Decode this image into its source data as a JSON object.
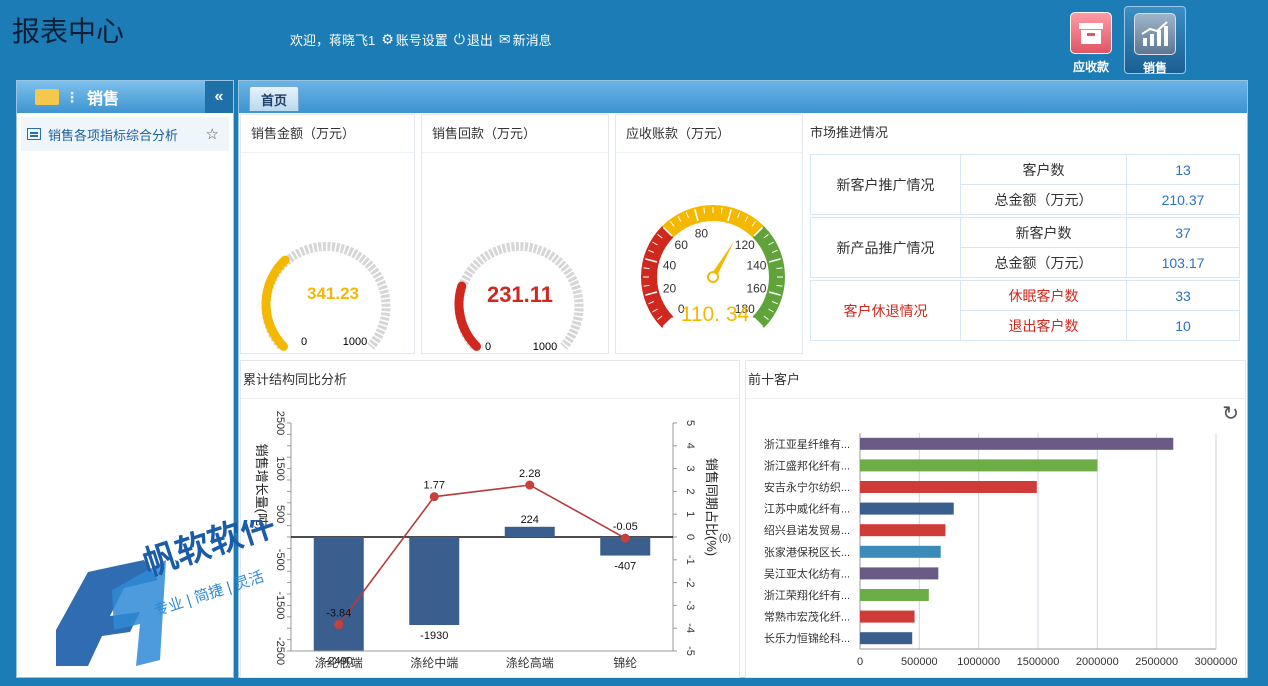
{
  "header": {
    "title": "报表中心",
    "welcome": "欢迎，蒋晓飞1",
    "account_settings": "账号设置",
    "logout": "退出",
    "new_message": "新消息"
  },
  "top_apps": [
    {
      "label": "应收款"
    },
    {
      "label": "销售"
    }
  ],
  "sidebar": {
    "title": "销售",
    "items": [
      {
        "label": "销售各项指标综合分析"
      }
    ]
  },
  "tabs": [
    {
      "label": "首页"
    }
  ],
  "gauges": [
    {
      "title": "销售金额（万元）",
      "value": "341.23",
      "min": "0",
      "max": "1000",
      "fraction": 0.341,
      "color": "#f5b800"
    },
    {
      "title": "销售回款（万元）",
      "value": "231.11",
      "min": "0",
      "max": "1000",
      "fraction": 0.231,
      "color": "#d0281e"
    },
    {
      "title": "应收账款（万元）",
      "value": "110. 34",
      "ticks": [
        "0",
        "20",
        "40",
        "60",
        "80",
        "120",
        "140",
        "160",
        "180"
      ],
      "reading": 110.34
    }
  ],
  "market": {
    "title": "市场推进情况",
    "groups": [
      {
        "name": "新客户推广情况",
        "rows": [
          {
            "label": "客户数",
            "value": "13"
          },
          {
            "label": "总金额（万元）",
            "value": "210.37"
          }
        ]
      },
      {
        "name": "新产品推广情况",
        "rows": [
          {
            "label": "新客户数",
            "value": "37"
          },
          {
            "label": "总金额（万元）",
            "value": "103.17"
          }
        ]
      },
      {
        "name": "客户休退情况",
        "rows": [
          {
            "label": "休眠客户数",
            "value": "33"
          },
          {
            "label": "退出客户数",
            "value": "10"
          }
        ]
      }
    ]
  },
  "cumulative": {
    "title": "累计结构同比分析",
    "left_axis_label": "销售增长量(吨)",
    "right_axis_label": "销售同期占比(%)",
    "right_axis_unit": "(0)"
  },
  "top_customers": {
    "title": "前十客户"
  },
  "chart_data": [
    {
      "type": "bar",
      "title": "累计结构同比分析",
      "categories": [
        "涤纶低端",
        "涤纶中端",
        "涤纶高端",
        "锦纶"
      ],
      "series": [
        {
          "name": "销售增长量(吨)",
          "type": "bar",
          "values": [
            -2490,
            -1930,
            224,
            -407
          ],
          "axis": "left"
        },
        {
          "name": "销售同期占比(%)",
          "type": "line",
          "values": [
            -3.84,
            1.77,
            2.28,
            -0.05
          ],
          "axis": "right"
        }
      ],
      "ylim": [
        -2500,
        2500
      ],
      "yticks": [
        "2500",
        "1500",
        "500",
        "-500",
        "-1500",
        "-2500"
      ],
      "y2lim": [
        -5,
        5
      ],
      "y2ticks": [
        "5",
        "4",
        "3",
        "2",
        "1",
        "0",
        "-1",
        "-2",
        "-3",
        "-4",
        "-5"
      ],
      "bar_labels": [
        "-2490",
        "-1930",
        "224",
        "-407"
      ],
      "line_labels": [
        "-3.84",
        "1.77",
        "2.28",
        "-0.05"
      ],
      "colors": {
        "bar": "#3a5f8f",
        "line": "#b83a3a"
      }
    },
    {
      "type": "bar",
      "orientation": "horizontal",
      "title": "前十客户",
      "categories": [
        "浙江亚星纤维有...",
        "浙江盛邦化纤有...",
        "安吉永宁尔纺织...",
        "江苏中威化纤有...",
        "绍兴县诺发贸易...",
        "张家港保税区长...",
        "吴江亚太化纺有...",
        "浙江荣翔化纤有...",
        "常熟市宏茂化纤...",
        "长乐力恒锦纶科..."
      ],
      "values": [
        2640000,
        2000000,
        1490000,
        790000,
        720000,
        680000,
        660000,
        580000,
        460000,
        440000
      ],
      "colors": [
        "#6a5a86",
        "#6cae45",
        "#cf3b37",
        "#3a5f8f",
        "#cf3b37",
        "#3b8ab8",
        "#6a5a86",
        "#6cae45",
        "#cf3b37",
        "#3a5f8f"
      ],
      "xlim": [
        0,
        3000000
      ],
      "xticks": [
        "0",
        "500000",
        "1000000",
        "1500000",
        "2000000",
        "2500000",
        "3000000"
      ]
    }
  ],
  "logo": {
    "brand": "帆软软件",
    "slogan": "专业 | 简捷 | 灵活"
  }
}
